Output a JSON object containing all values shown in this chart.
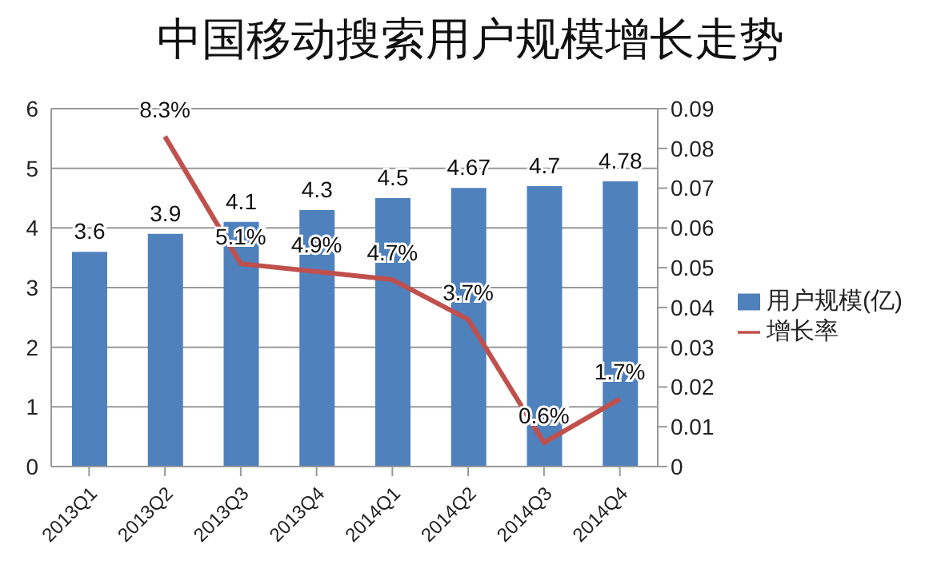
{
  "chart_data": {
    "type": "bar",
    "title": "中国移动搜索用户规模增长走势",
    "categories": [
      "2013Q1",
      "2013Q2",
      "2013Q3",
      "2013Q4",
      "2014Q1",
      "2014Q2",
      "2014Q3",
      "2014Q4"
    ],
    "series": [
      {
        "name": "用户规模(亿)",
        "color": "#4f81bd",
        "values": [
          3.6,
          3.9,
          4.1,
          4.3,
          4.5,
          4.67,
          4.7,
          4.78
        ],
        "value_labels": [
          "3.6",
          "3.9",
          "4.1",
          "4.3",
          "4.5",
          "4.67",
          "4.7",
          "4.78"
        ]
      },
      {
        "name": "增长率",
        "type": "line",
        "axis": "y2",
        "color": "#c0504d",
        "values": [
          null,
          0.083,
          0.051,
          0.049,
          0.047,
          0.037,
          0.006,
          0.017
        ],
        "value_labels": [
          null,
          "8.3%",
          "5.1%",
          "4.9%",
          "4.7%",
          "3.7%",
          "0.6%",
          "1.7%"
        ]
      }
    ],
    "ylim": [
      0,
      6
    ],
    "yticks": [
      0,
      1,
      2,
      3,
      4,
      5,
      6
    ],
    "y2lim": [
      0,
      0.09
    ],
    "y2ticks": [
      0,
      0.01,
      0.02,
      0.03,
      0.04,
      0.05,
      0.06,
      0.07,
      0.08,
      0.09
    ],
    "grid": "y",
    "legend": "right",
    "marker": "none"
  }
}
